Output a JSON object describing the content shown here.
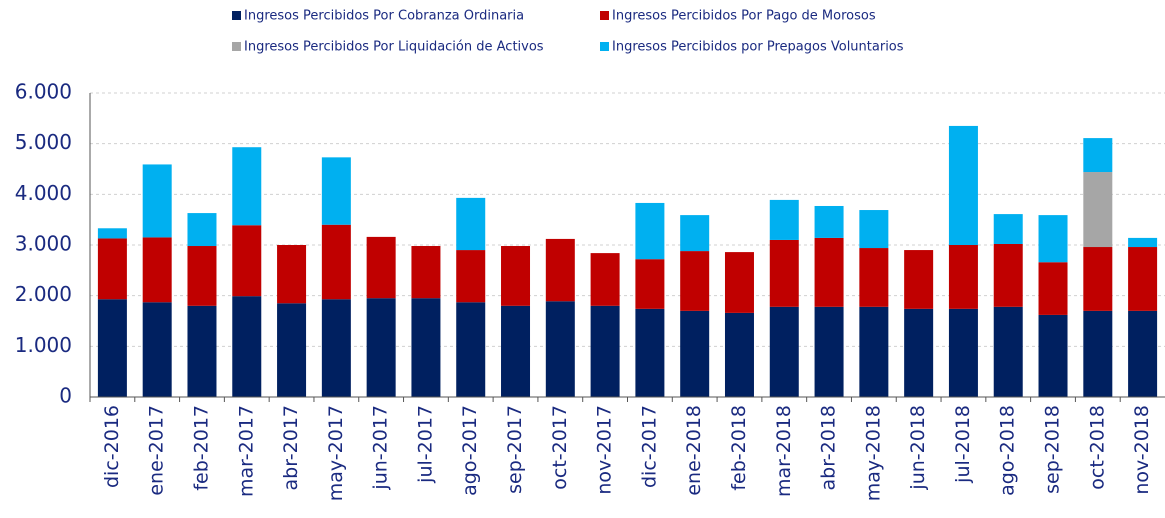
{
  "chart_data": {
    "type": "bar",
    "stacked": true,
    "categories": [
      "dic-2016",
      "ene-2017",
      "feb-2017",
      "mar-2017",
      "abr-2017",
      "may-2017",
      "jun-2017",
      "jul-2017",
      "ago-2017",
      "sep-2017",
      "oct-2017",
      "nov-2017",
      "dic-2017",
      "ene-2018",
      "feb-2018",
      "mar-2018",
      "abr-2018",
      "may-2018",
      "jun-2018",
      "jul-2018",
      "ago-2018",
      "sep-2018",
      "oct-2018",
      "nov-2018"
    ],
    "series": [
      {
        "name": "Ingresos Percibidos Por Cobranza Ordinaria",
        "color": "#002060",
        "values": [
          1930,
          1870,
          1800,
          1990,
          1850,
          1930,
          1950,
          1950,
          1870,
          1800,
          1890,
          1800,
          1740,
          1700,
          1660,
          1780,
          1780,
          1780,
          1740,
          1740,
          1780,
          1620,
          1700,
          1700
        ]
      },
      {
        "name": "Ingresos Percibidos Por Pago de Morosos",
        "color": "#c00000",
        "values": [
          1200,
          1280,
          1180,
          1400,
          1150,
          1470,
          1210,
          1030,
          1030,
          1180,
          1230,
          1040,
          980,
          1180,
          1200,
          1320,
          1360,
          1160,
          1160,
          1260,
          1240,
          1040,
          1260,
          1260
        ]
      },
      {
        "name": "Ingresos Percibidos Por Liquidación de Activos",
        "color": "#a6a6a6",
        "values": [
          0,
          0,
          0,
          0,
          0,
          0,
          0,
          0,
          0,
          0,
          0,
          0,
          0,
          0,
          0,
          0,
          0,
          0,
          0,
          0,
          0,
          0,
          1480,
          0
        ]
      },
      {
        "name": "Ingresos Percibidos por Prepagos Voluntarios",
        "color": "#00b0f0",
        "values": [
          200,
          1440,
          650,
          1540,
          0,
          1330,
          0,
          0,
          1030,
          0,
          0,
          0,
          1110,
          710,
          0,
          790,
          630,
          750,
          0,
          2350,
          590,
          930,
          670,
          180
        ]
      }
    ],
    "ylim": [
      0,
      6000
    ],
    "yticks": [
      0,
      {
        "value": 1000,
        "label": "1.000"
      },
      {
        "value": 2000,
        "label": "2.000"
      },
      {
        "value": 3000,
        "label": "3.000"
      },
      {
        "value": 4000,
        "label": "4.000"
      },
      {
        "value": 5000,
        "label": "5.000"
      },
      {
        "value": 6000,
        "label": "6.000"
      }
    ],
    "grid": true,
    "legend": "top"
  }
}
